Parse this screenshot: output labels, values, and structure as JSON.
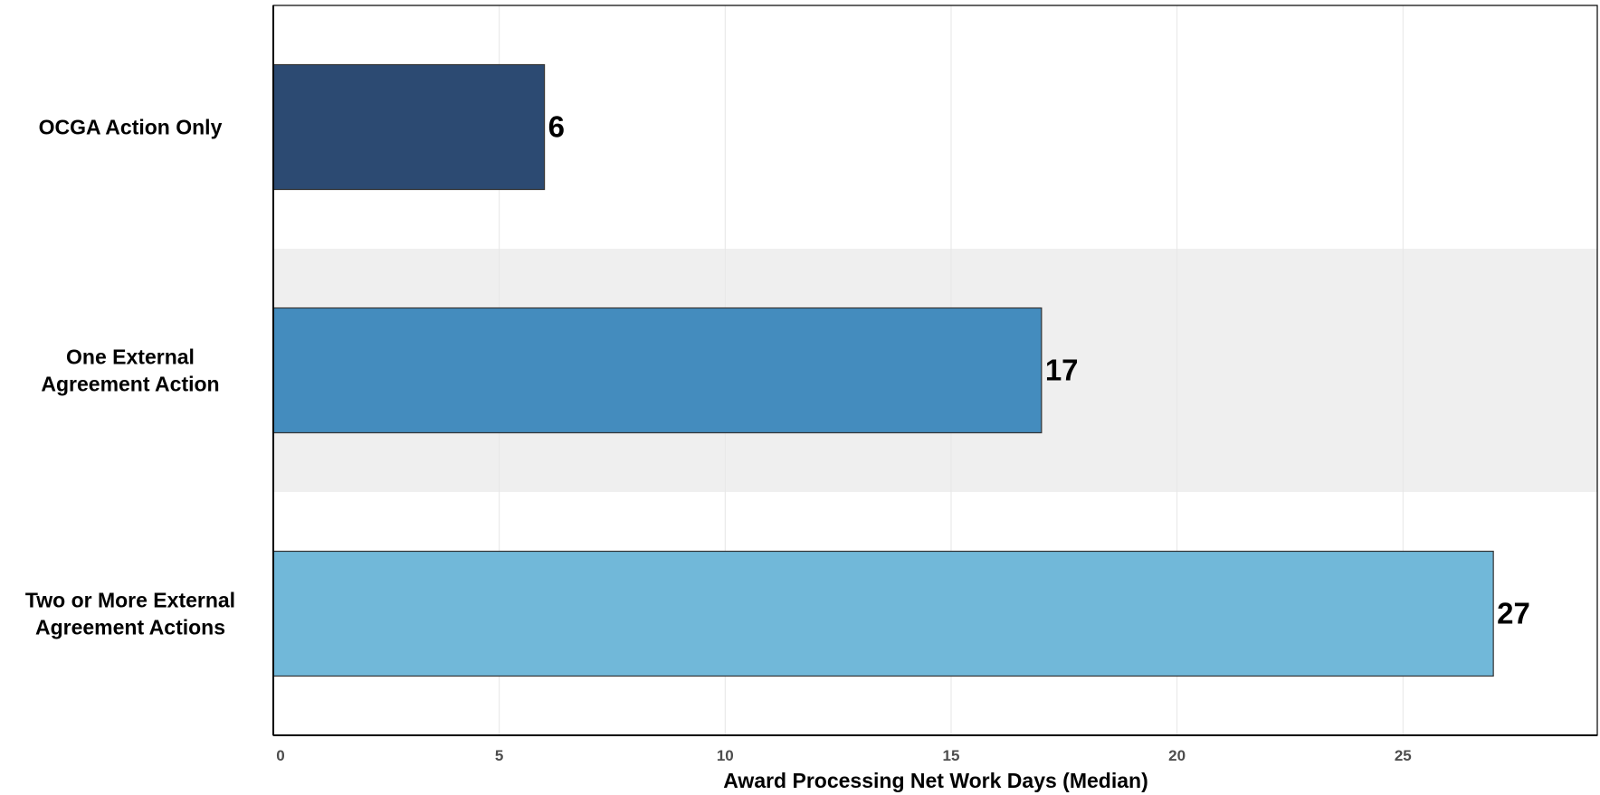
{
  "chart_data": {
    "type": "bar",
    "orientation": "horizontal",
    "categories": [
      [
        "OCGA Action Only"
      ],
      [
        "One External",
        "Agreement Action"
      ],
      [
        "Two or More External",
        "Agreement Actions"
      ]
    ],
    "values": [
      6,
      17,
      27
    ],
    "colors": [
      "#2c4a72",
      "#448cbe",
      "#71b8d9"
    ],
    "band_color": "#efefef",
    "grid_color": "#e6e6e6",
    "xlabel": "Award Processing Net Work Days (Median)",
    "ylabel": "",
    "title": "",
    "xlim": [
      0,
      29.3
    ],
    "xticks": [
      0,
      5,
      10,
      15,
      20,
      25
    ],
    "grid": true,
    "legend": "none"
  }
}
